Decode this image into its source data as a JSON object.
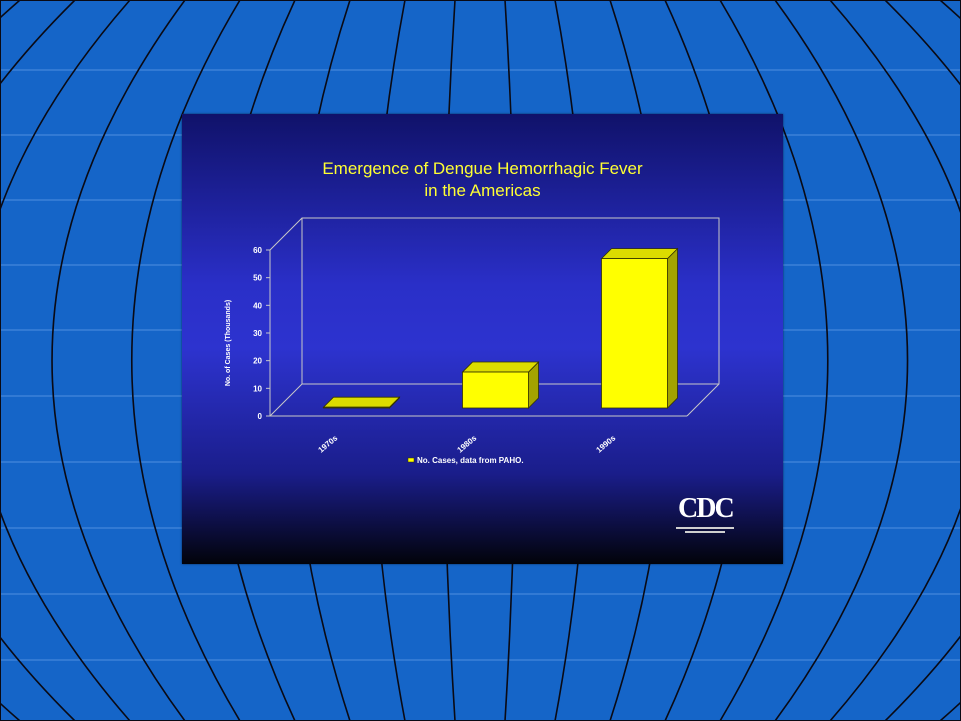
{
  "chart_data": {
    "type": "bar",
    "title_lines": [
      "Emergence of Dengue Hemorrhagic Fever",
      "in the Americas"
    ],
    "categories": [
      "1970s",
      "1980s",
      "1990s"
    ],
    "series": [
      {
        "name": "No. Cases, data from PAHO.",
        "values": [
          0.3,
          13,
          54
        ]
      }
    ],
    "ylabel": "No. of Cases (Thousands)",
    "ylim": [
      0,
      60
    ],
    "yticks": [
      "0",
      "10",
      "20",
      "30",
      "40",
      "50",
      "60"
    ],
    "style": "3d",
    "legend_position": "bottom-center",
    "colors": {
      "bar_face": "#ffff00",
      "bar_side": "#a3a300",
      "bar_top": "#dcdc00",
      "text": "#ffffff",
      "title": "#ffff33",
      "axis": "#c8c8c8"
    }
  },
  "logo": {
    "text": "CDC"
  },
  "background": {
    "base": "#1565c8",
    "line": "#0a0a14"
  }
}
